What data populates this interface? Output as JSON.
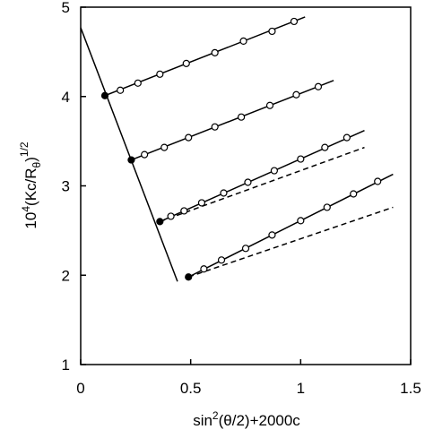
{
  "chart_data": {
    "type": "scatter",
    "xlabel": [
      "sin",
      "2",
      "(θ/2)+2000c"
    ],
    "ylabel": [
      "10",
      "4",
      "(Kc/R",
      "θ",
      ")",
      "1/2"
    ],
    "xlim": [
      0,
      1.5
    ],
    "ylim": [
      1,
      5
    ],
    "xticks": [
      0,
      0.5,
      1,
      1.5
    ],
    "yticks": [
      1,
      2,
      3,
      4,
      5
    ],
    "series": [
      {
        "marker": "filled",
        "color": "#000000",
        "x": [
          0.11,
          0.23,
          0.36,
          0.49
        ],
        "y": [
          4.01,
          3.29,
          2.6,
          1.98
        ]
      },
      {
        "marker": "open",
        "color": "#000000",
        "x": [
          0.18,
          0.26,
          0.36,
          0.48,
          0.61,
          0.74,
          0.87,
          0.97
        ],
        "y": [
          4.07,
          4.15,
          4.25,
          4.37,
          4.49,
          4.62,
          4.73,
          4.84
        ]
      },
      {
        "marker": "open",
        "color": "#000000",
        "x": [
          0.29,
          0.38,
          0.49,
          0.61,
          0.73,
          0.86,
          0.98,
          1.08
        ],
        "y": [
          3.35,
          3.43,
          3.54,
          3.66,
          3.77,
          3.9,
          4.02,
          4.11
        ]
      },
      {
        "marker": "open",
        "color": "#000000",
        "x": [
          0.41,
          0.47,
          0.55,
          0.65,
          0.76,
          0.88,
          1.0,
          1.11,
          1.21
        ],
        "y": [
          2.66,
          2.72,
          2.81,
          2.92,
          3.04,
          3.17,
          3.3,
          3.43,
          3.54
        ]
      },
      {
        "marker": "open",
        "color": "#000000",
        "x": [
          0.56,
          0.64,
          0.75,
          0.87,
          1.0,
          1.12,
          1.24,
          1.35
        ],
        "y": [
          2.07,
          2.17,
          2.3,
          2.45,
          2.61,
          2.76,
          2.91,
          3.05
        ]
      }
    ],
    "lines": [
      {
        "dash": false,
        "x": [
          0,
          0.44
        ],
        "y": [
          4.77,
          1.93
        ]
      },
      {
        "dash": false,
        "x": [
          0.11,
          1.02
        ],
        "y": [
          4.01,
          4.89
        ]
      },
      {
        "dash": false,
        "x": [
          0.23,
          1.15
        ],
        "y": [
          3.29,
          4.18
        ]
      },
      {
        "dash": false,
        "x": [
          0.36,
          1.29
        ],
        "y": [
          2.6,
          3.62
        ]
      },
      {
        "dash": true,
        "x": [
          0.36,
          1.29
        ],
        "y": [
          2.6,
          3.43
        ]
      },
      {
        "dash": false,
        "x": [
          0.49,
          1.42
        ],
        "y": [
          1.98,
          3.13
        ]
      },
      {
        "dash": true,
        "x": [
          0.49,
          1.42
        ],
        "y": [
          1.98,
          2.76
        ]
      }
    ]
  }
}
